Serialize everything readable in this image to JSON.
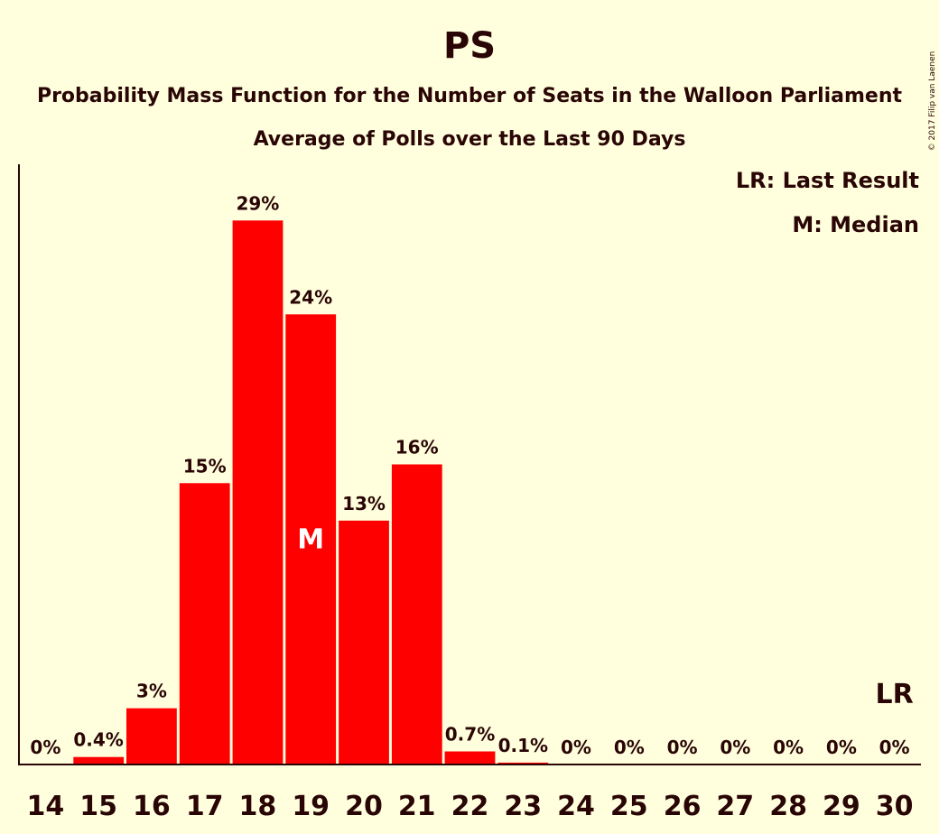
{
  "title": "PS",
  "subtitle1": "Probability Mass Function for the Number of Seats in the Walloon Parliament",
  "subtitle2": "Average of Polls over the Last 90 Days",
  "legend": {
    "last_result": "LR: Last Result",
    "median": "M: Median"
  },
  "copyright": "© 2017 Filip van Laenen",
  "colors": {
    "background": "#FFFFDD",
    "bar": "#FF0000",
    "text": "#2A0505"
  },
  "chart_data": {
    "type": "bar",
    "categories": [
      "14",
      "15",
      "16",
      "17",
      "18",
      "19",
      "20",
      "21",
      "22",
      "23",
      "24",
      "25",
      "26",
      "27",
      "28",
      "29",
      "30"
    ],
    "values": [
      0,
      0.4,
      3,
      15,
      29,
      24,
      13,
      16,
      0.7,
      0.1,
      0,
      0,
      0,
      0,
      0,
      0,
      0
    ],
    "labels": [
      "0%",
      "0.4%",
      "3%",
      "15%",
      "29%",
      "24%",
      "13%",
      "16%",
      "0.7%",
      "0.1%",
      "0%",
      "0%",
      "0%",
      "0%",
      "0%",
      "0%",
      "0%"
    ],
    "ylim": [
      0,
      32
    ],
    "median_category": "19",
    "median_marker": "M",
    "last_result_category": "30",
    "last_result_marker": "LR",
    "grid": false,
    "legend_position": "top-right"
  }
}
